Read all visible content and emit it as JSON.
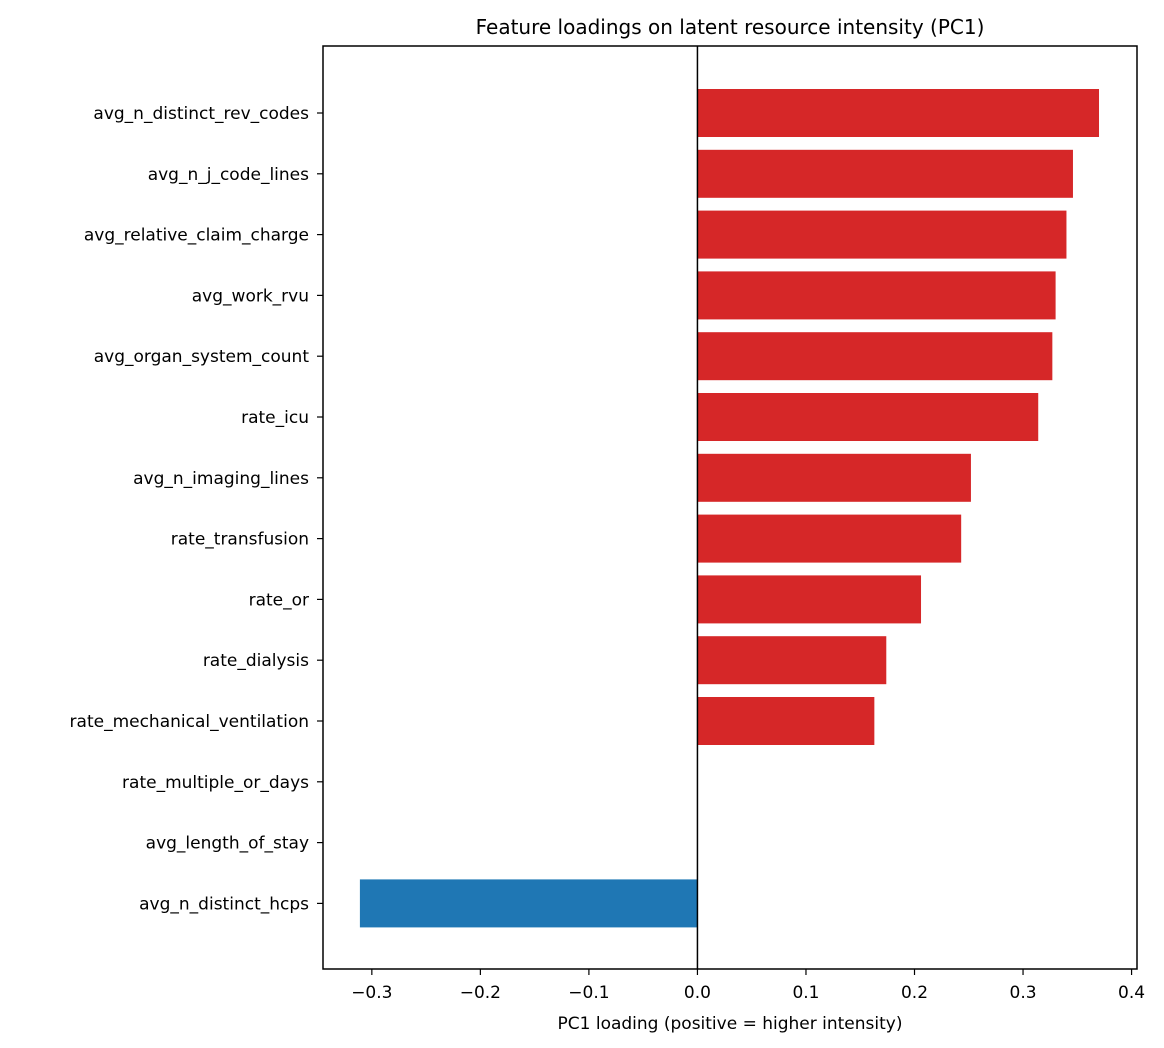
{
  "chart_data": {
    "type": "bar",
    "orientation": "horizontal",
    "title": "Feature loadings on latent resource intensity (PC1)",
    "xlabel": "PC1 loading (positive = higher intensity)",
    "ylabel": "",
    "xlim": [
      -0.345,
      0.405
    ],
    "xticks": [
      -0.3,
      -0.2,
      -0.1,
      0.0,
      0.1,
      0.2,
      0.3,
      0.4
    ],
    "xtick_labels": [
      "−0.3",
      "−0.2",
      "−0.1",
      "0.0",
      "0.1",
      "0.2",
      "0.3",
      "0.4"
    ],
    "categories": [
      "avg_n_distinct_rev_codes",
      "avg_n_j_code_lines",
      "avg_relative_claim_charge",
      "avg_work_rvu",
      "avg_organ_system_count",
      "rate_icu",
      "avg_n_imaging_lines",
      "rate_transfusion",
      "rate_or",
      "rate_dialysis",
      "rate_mechanical_ventilation",
      "rate_multiple_or_days",
      "avg_length_of_stay",
      "avg_n_distinct_hcps"
    ],
    "values": [
      0.37,
      0.346,
      0.34,
      0.33,
      0.327,
      0.314,
      0.252,
      0.243,
      0.206,
      0.174,
      0.163,
      0.0,
      0.0,
      -0.311
    ],
    "positive_color": "#d62728",
    "negative_color": "#1f77b4",
    "zero_line": true,
    "grid": false
  }
}
